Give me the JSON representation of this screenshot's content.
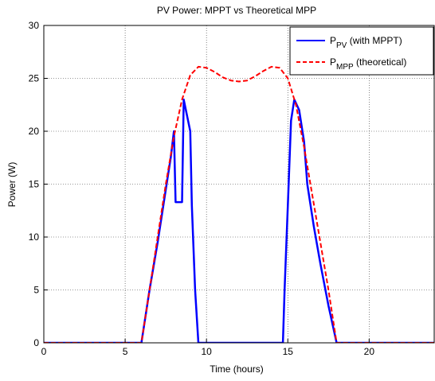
{
  "chart_data": {
    "type": "line",
    "title": "PV Power: MPPT vs Theoretical MPP",
    "xlabel": "Time (hours)",
    "ylabel": "Power (W)",
    "xlim": [
      0,
      24
    ],
    "ylim": [
      0,
      30
    ],
    "xticks": [
      0,
      5,
      10,
      15,
      20
    ],
    "yticks": [
      0,
      5,
      10,
      15,
      20,
      25,
      30
    ],
    "xtick_labels": [
      "0",
      "5",
      "10",
      "15",
      "20"
    ],
    "ytick_labels": [
      "0",
      "5",
      "10",
      "15",
      "20",
      "25",
      "30"
    ],
    "grid": true,
    "legend_position": "top-right",
    "series": [
      {
        "name": "P_PV (with MPPT)",
        "legend_main": "P",
        "legend_sub": "PV",
        "legend_rest": " (with MPPT)",
        "color": "#0000ff",
        "style": "solid",
        "x": [
          0,
          6.0,
          6.5,
          7.0,
          7.5,
          7.8,
          8.0,
          8.1,
          8.5,
          8.6,
          9.0,
          9.1,
          9.3,
          9.5,
          14.7,
          14.8,
          15.0,
          15.2,
          15.4,
          15.7,
          16.0,
          16.2,
          16.6,
          17.0,
          17.5,
          18.0,
          24
        ],
        "y": [
          0,
          0,
          5.0,
          9.5,
          14.5,
          17.5,
          20.0,
          13.3,
          13.3,
          23.0,
          20.0,
          13.0,
          5.0,
          0,
          0,
          5.0,
          13.0,
          21.0,
          23.0,
          22.0,
          19.0,
          15.0,
          11.0,
          7.5,
          3.5,
          0,
          0
        ]
      },
      {
        "name": "P_MPP (theoretical)",
        "legend_main": "P",
        "legend_sub": "MPP",
        "legend_rest": " (theoretical)",
        "color": "#ff0000",
        "style": "dashed",
        "x": [
          0,
          6.0,
          6.5,
          7.0,
          7.5,
          8.0,
          8.5,
          9.0,
          9.5,
          10.0,
          10.5,
          11.0,
          11.5,
          12.0,
          12.5,
          13.0,
          13.5,
          14.0,
          14.5,
          15.0,
          15.5,
          16.0,
          16.5,
          17.0,
          17.5,
          18.0,
          24
        ],
        "y": [
          0,
          0,
          5.0,
          10.0,
          15.0,
          19.5,
          23.0,
          25.3,
          26.1,
          26.0,
          25.6,
          25.1,
          24.8,
          24.7,
          24.8,
          25.2,
          25.7,
          26.1,
          26.0,
          25.0,
          22.5,
          18.5,
          14.0,
          9.5,
          5.0,
          0,
          0
        ]
      }
    ]
  }
}
